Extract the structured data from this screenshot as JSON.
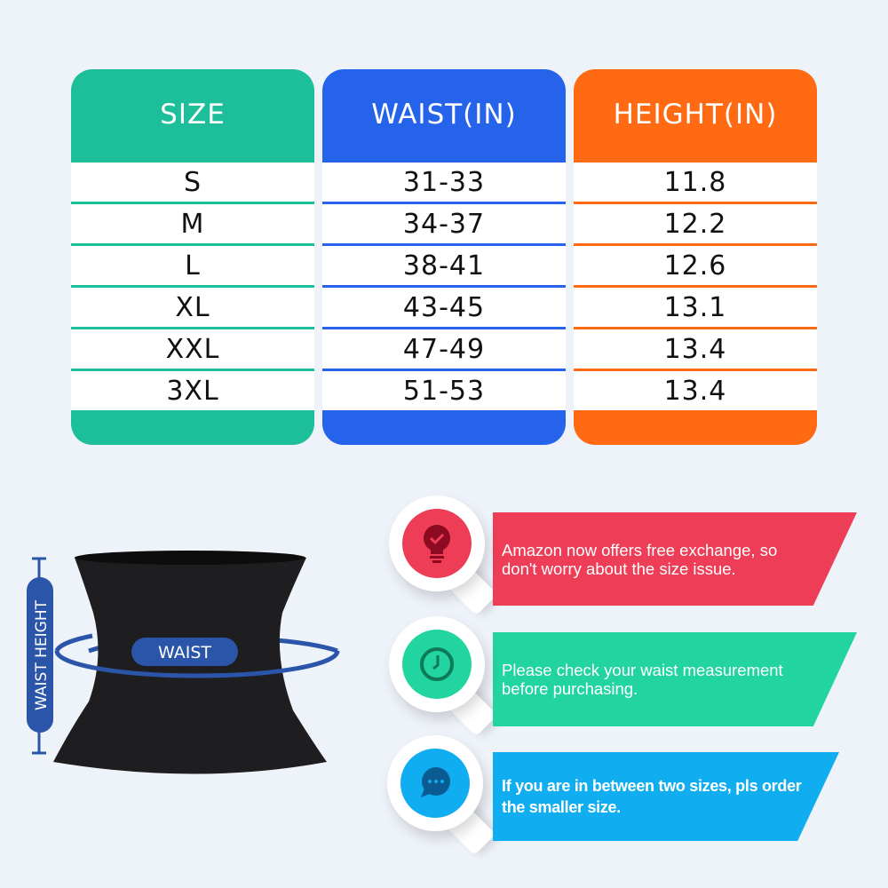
{
  "table": {
    "columns": [
      {
        "header": "SIZE",
        "color": "#1dbf9a",
        "values": [
          "S",
          "M",
          "L",
          "XL",
          "XXL",
          "3XL"
        ]
      },
      {
        "header": "WAIST(IN)",
        "color": "#2563ea",
        "values": [
          "31-33",
          "34-37",
          "38-41",
          "43-45",
          "47-49",
          "51-53"
        ]
      },
      {
        "header": "HEIGHT(IN)",
        "color": "#ff6a13",
        "values": [
          "11.8",
          "12.2",
          "12.6",
          "13.1",
          "13.4",
          "13.4"
        ]
      }
    ]
  },
  "figure": {
    "waist_label": "WAIST",
    "height_label": "WAIST HEIGHT",
    "accent": "#2a55a8"
  },
  "tips": [
    {
      "icon": "lightbulb-check-icon",
      "color": "#ee3d56",
      "icon_color": "#8c0a22",
      "lines": [
        "Amazon now offers free exchange, so",
        "don't worry about the size issue."
      ]
    },
    {
      "icon": "clock-icon",
      "color": "#22d4a0",
      "icon_color": "#0d7a55",
      "lines": [
        "Please check your waist measurement",
        "before purchasing."
      ]
    },
    {
      "icon": "chat-bubble-icon",
      "color": "#10aef0",
      "icon_color": "#0b5b93",
      "lines": [
        "If you are in between two sizes, pls order",
        "the smaller size."
      ]
    }
  ]
}
